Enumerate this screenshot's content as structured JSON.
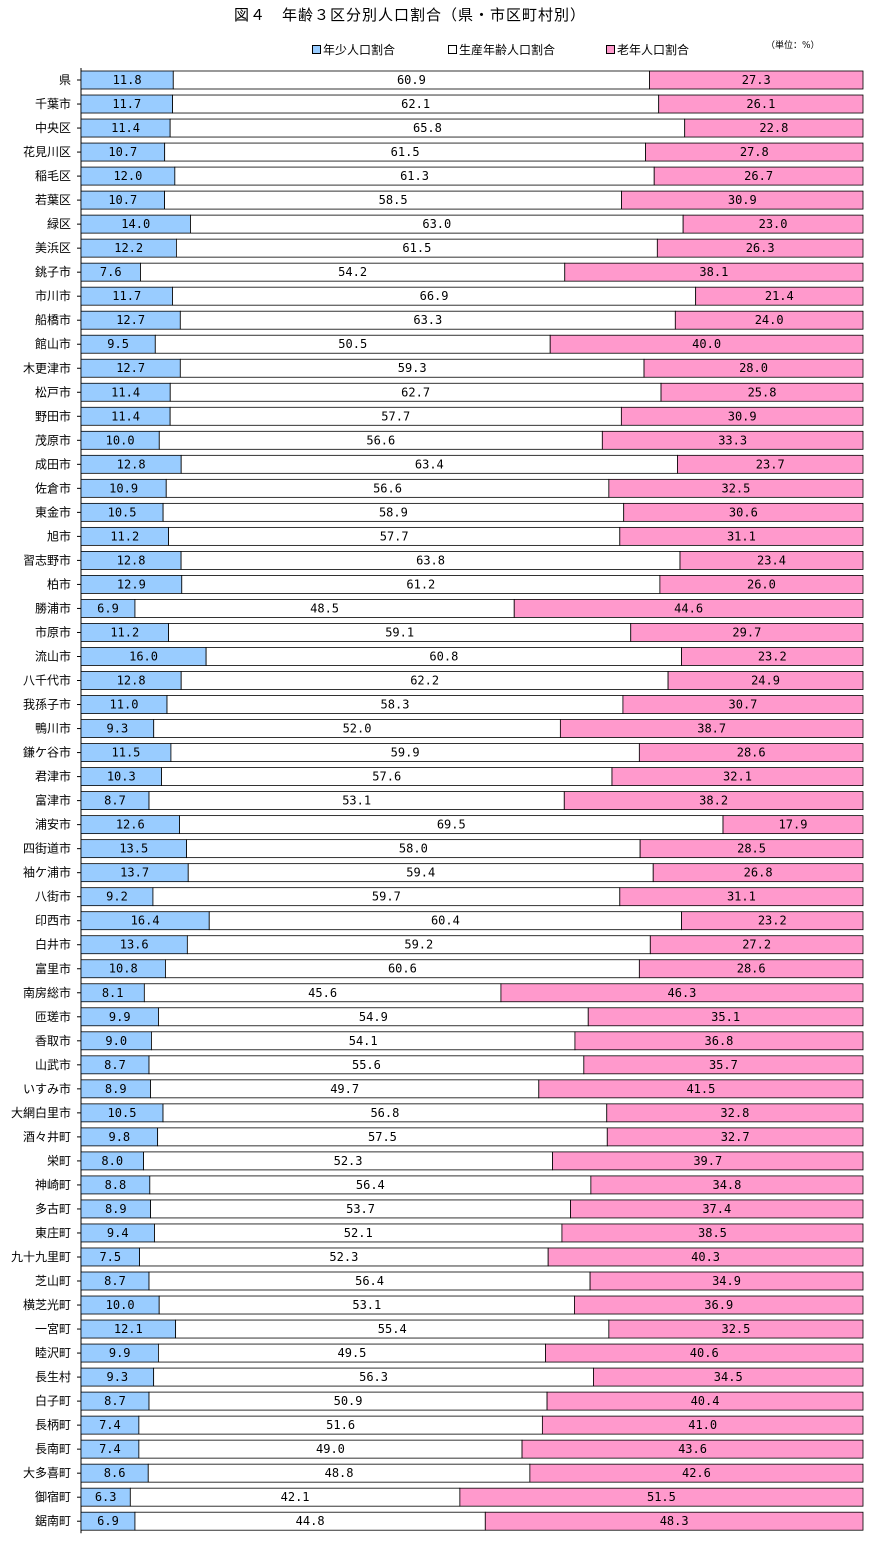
{
  "chart_data": {
    "type": "bar",
    "stacked": true,
    "orientation": "horizontal",
    "title": "図４　年齢３区分別人口割合（県・市区町村別）",
    "unit": "（単位：%）",
    "legend_position": "top",
    "xlim": [
      0,
      100
    ],
    "grid": false,
    "series": [
      {
        "name": "年少人口割合",
        "color": "#99CCFF"
      },
      {
        "name": "生産年齢人口割合",
        "color": "#FFFFFF"
      },
      {
        "name": "老年人口割合",
        "color": "#FF99CC"
      }
    ],
    "categories": [
      "県",
      "千葉市",
      "中央区",
      "花見川区",
      "稲毛区",
      "若葉区",
      "緑区",
      "美浜区",
      "銚子市",
      "市川市",
      "船橋市",
      "館山市",
      "木更津市",
      "松戸市",
      "野田市",
      "茂原市",
      "成田市",
      "佐倉市",
      "東金市",
      "旭市",
      "習志野市",
      "柏市",
      "勝浦市",
      "市原市",
      "流山市",
      "八千代市",
      "我孫子市",
      "鴨川市",
      "鎌ケ谷市",
      "君津市",
      "富津市",
      "浦安市",
      "四街道市",
      "袖ケ浦市",
      "八街市",
      "印西市",
      "白井市",
      "富里市",
      "南房総市",
      "匝瑳市",
      "香取市",
      "山武市",
      "いすみ市",
      "大網白里市",
      "酒々井町",
      "栄町",
      "神崎町",
      "多古町",
      "東庄町",
      "九十九里町",
      "芝山町",
      "横芝光町",
      "一宮町",
      "睦沢町",
      "長生村",
      "白子町",
      "長柄町",
      "長南町",
      "大多喜町",
      "御宿町",
      "鋸南町"
    ],
    "rows": [
      [
        "11.8",
        "60.9",
        "27.3"
      ],
      [
        "11.7",
        "62.1",
        "26.1"
      ],
      [
        "11.4",
        "65.8",
        "22.8"
      ],
      [
        "10.7",
        "61.5",
        "27.8"
      ],
      [
        "12.0",
        "61.3",
        "26.7"
      ],
      [
        "10.7",
        "58.5",
        "30.9"
      ],
      [
        "14.0",
        "63.0",
        "23.0"
      ],
      [
        "12.2",
        "61.5",
        "26.3"
      ],
      [
        "7.6",
        "54.2",
        "38.1"
      ],
      [
        "11.7",
        "66.9",
        "21.4"
      ],
      [
        "12.7",
        "63.3",
        "24.0"
      ],
      [
        "9.5",
        "50.5",
        "40.0"
      ],
      [
        "12.7",
        "59.3",
        "28.0"
      ],
      [
        "11.4",
        "62.7",
        "25.8"
      ],
      [
        "11.4",
        "57.7",
        "30.9"
      ],
      [
        "10.0",
        "56.6",
        "33.3"
      ],
      [
        "12.8",
        "63.4",
        "23.7"
      ],
      [
        "10.9",
        "56.6",
        "32.5"
      ],
      [
        "10.5",
        "58.9",
        "30.6"
      ],
      [
        "11.2",
        "57.7",
        "31.1"
      ],
      [
        "12.8",
        "63.8",
        "23.4"
      ],
      [
        "12.9",
        "61.2",
        "26.0"
      ],
      [
        "6.9",
        "48.5",
        "44.6"
      ],
      [
        "11.2",
        "59.1",
        "29.7"
      ],
      [
        "16.0",
        "60.8",
        "23.2"
      ],
      [
        "12.8",
        "62.2",
        "24.9"
      ],
      [
        "11.0",
        "58.3",
        "30.7"
      ],
      [
        "9.3",
        "52.0",
        "38.7"
      ],
      [
        "11.5",
        "59.9",
        "28.6"
      ],
      [
        "10.3",
        "57.6",
        "32.1"
      ],
      [
        "8.7",
        "53.1",
        "38.2"
      ],
      [
        "12.6",
        "69.5",
        "17.9"
      ],
      [
        "13.5",
        "58.0",
        "28.5"
      ],
      [
        "13.7",
        "59.4",
        "26.8"
      ],
      [
        "9.2",
        "59.7",
        "31.1"
      ],
      [
        "16.4",
        "60.4",
        "23.2"
      ],
      [
        "13.6",
        "59.2",
        "27.2"
      ],
      [
        "10.8",
        "60.6",
        "28.6"
      ],
      [
        "8.1",
        "45.6",
        "46.3"
      ],
      [
        "9.9",
        "54.9",
        "35.1"
      ],
      [
        "9.0",
        "54.1",
        "36.8"
      ],
      [
        "8.7",
        "55.6",
        "35.7"
      ],
      [
        "8.9",
        "49.7",
        "41.5"
      ],
      [
        "10.5",
        "56.8",
        "32.8"
      ],
      [
        "9.8",
        "57.5",
        "32.7"
      ],
      [
        "8.0",
        "52.3",
        "39.7"
      ],
      [
        "8.8",
        "56.4",
        "34.8"
      ],
      [
        "8.9",
        "53.7",
        "37.4"
      ],
      [
        "9.4",
        "52.1",
        "38.5"
      ],
      [
        "7.5",
        "52.3",
        "40.3"
      ],
      [
        "8.7",
        "56.4",
        "34.9"
      ],
      [
        "10.0",
        "53.1",
        "36.9"
      ],
      [
        "12.1",
        "55.4",
        "32.5"
      ],
      [
        "9.9",
        "49.5",
        "40.6"
      ],
      [
        "9.3",
        "56.3",
        "34.5"
      ],
      [
        "8.7",
        "50.9",
        "40.4"
      ],
      [
        "7.4",
        "51.6",
        "41.0"
      ],
      [
        "7.4",
        "49.0",
        "43.6"
      ],
      [
        "8.6",
        "48.8",
        "42.6"
      ],
      [
        "6.3",
        "42.1",
        "51.5"
      ],
      [
        "6.9",
        "44.8",
        "48.3"
      ]
    ]
  }
}
